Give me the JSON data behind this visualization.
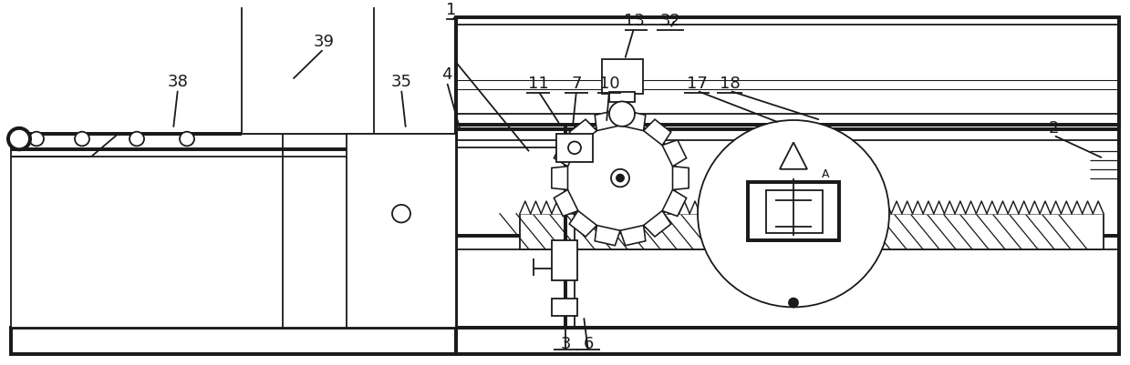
{
  "bg_color": "#ffffff",
  "line_color": "#1a1a1a",
  "lw": 1.3,
  "fig_width": 12.39,
  "fig_height": 4.02,
  "dpi": 100,
  "xlim": [
    0,
    1239
  ],
  "ylim": [
    0,
    402
  ]
}
